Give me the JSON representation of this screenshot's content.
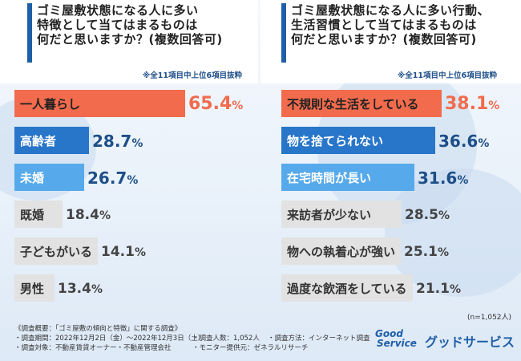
{
  "footer": {
    "line1": "《調査概要：「ゴミ屋敷の傾向と特徴」に関する調査》",
    "line2": "・調査期間：2022年12月2日（金）〜2022年12月3日（土）",
    "line3": "・調査対象：不動産賃貸オーナー・不動産管理会社",
    "line4": "・調査人数：1,052人",
    "line5": "・調査方法：インターネット調査",
    "line6": "・モニター提供元：ゼネラルリサーチ"
  },
  "logo": {
    "line1": "Good",
    "line2": "Service",
    "name": "グッドサービス"
  },
  "colors": {
    "accent": "#1f5fa8",
    "top1": "#f26b4d",
    "top2": "#2876c9",
    "top3": "#56a9ea",
    "other": "#e2e2e2"
  },
  "chart_data": [
    {
      "type": "bar",
      "title_lines": [
        "ゴミ屋敷状態になる人に多い",
        "特徴として当てはまるものは",
        "何だと思いますか？(複数回答可)"
      ],
      "note": "※全11項目中上位6項目抜粋",
      "unit": "%",
      "categories": [
        "一人暮らし",
        "高齢者",
        "未婚",
        "既婚",
        "子どもがいる",
        "男性"
      ],
      "values": [
        65.4,
        28.7,
        26.7,
        18.4,
        14.1,
        13.4
      ],
      "value_labels": [
        "65.4",
        "28.7",
        "26.7",
        "18.4",
        "14.1",
        "13.4"
      ]
    },
    {
      "type": "bar",
      "title_lines": [
        "ゴミ屋敷状態になる人に多い行動、",
        "生活習慣として当てはまるものは",
        "何だと思いますか？(複数回答可)"
      ],
      "note": "※全11項目中上位6項目抜粋",
      "unit": "%",
      "categories": [
        "不規則な生活をしている",
        "物を捨てられない",
        "在宅時間が長い",
        "来訪者が少ない",
        "物への執着心が強い",
        "過度な飲酒をしている"
      ],
      "values": [
        38.1,
        36.6,
        31.6,
        28.5,
        25.1,
        21.1
      ],
      "value_labels": [
        "38.1",
        "36.6",
        "31.6",
        "28.5",
        "25.1",
        "21.1"
      ],
      "sample": "(n=1,052人)"
    }
  ]
}
